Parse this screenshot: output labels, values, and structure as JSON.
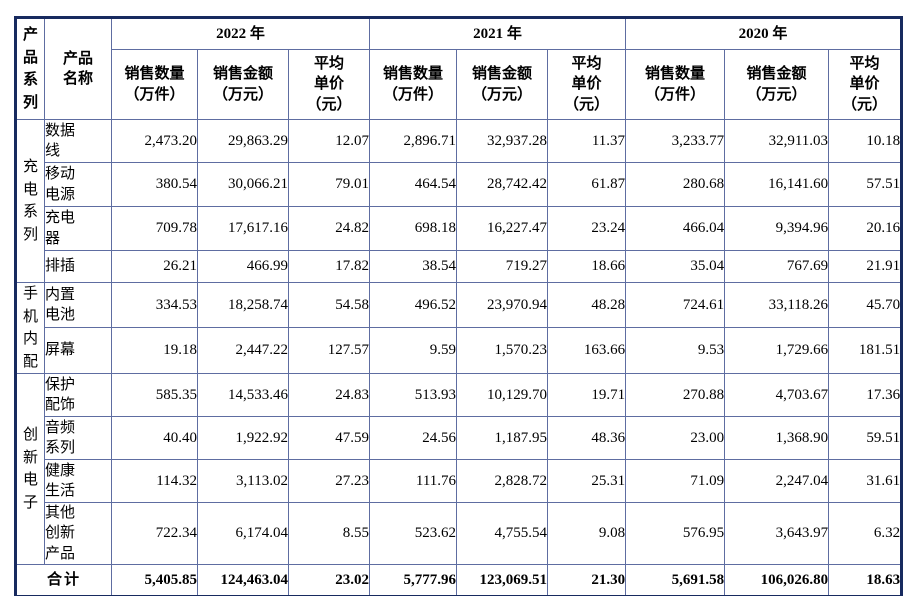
{
  "table": {
    "header": {
      "series": "产品系列",
      "product": "产品\n名称",
      "years": [
        "2022 年",
        "2021 年",
        "2020 年"
      ],
      "metrics": [
        "销售数量\n（万件）",
        "销售金额\n（万元）",
        "平均\n单价\n（元）"
      ]
    },
    "groups": [
      {
        "name": "充电系列",
        "rows": [
          {
            "name": "数据\n线",
            "values": [
              "2,473.20",
              "29,863.29",
              "12.07",
              "2,896.71",
              "32,937.28",
              "11.37",
              "3,233.77",
              "32,911.03",
              "10.18"
            ]
          },
          {
            "name": "移动\n电源",
            "values": [
              "380.54",
              "30,066.21",
              "79.01",
              "464.54",
              "28,742.42",
              "61.87",
              "280.68",
              "16,141.60",
              "57.51"
            ]
          },
          {
            "name": "充电\n器",
            "values": [
              "709.78",
              "17,617.16",
              "24.82",
              "698.18",
              "16,227.47",
              "23.24",
              "466.04",
              "9,394.96",
              "20.16"
            ]
          },
          {
            "name": "排插",
            "values": [
              "26.21",
              "466.99",
              "17.82",
              "38.54",
              "719.27",
              "18.66",
              "35.04",
              "767.69",
              "21.91"
            ]
          }
        ]
      },
      {
        "name": "手机内配",
        "rows": [
          {
            "name": "内置\n电池",
            "values": [
              "334.53",
              "18,258.74",
              "54.58",
              "496.52",
              "23,970.94",
              "48.28",
              "724.61",
              "33,118.26",
              "45.70"
            ]
          },
          {
            "name": "屏幕",
            "values": [
              "19.18",
              "2,447.22",
              "127.57",
              "9.59",
              "1,570.23",
              "163.66",
              "9.53",
              "1,729.66",
              "181.51"
            ]
          }
        ]
      },
      {
        "name": "创新电子",
        "rows": [
          {
            "name": "保护\n配饰",
            "values": [
              "585.35",
              "14,533.46",
              "24.83",
              "513.93",
              "10,129.70",
              "19.71",
              "270.88",
              "4,703.67",
              "17.36"
            ]
          },
          {
            "name": "音频\n系列",
            "values": [
              "40.40",
              "1,922.92",
              "47.59",
              "24.56",
              "1,187.95",
              "48.36",
              "23.00",
              "1,368.90",
              "59.51"
            ]
          },
          {
            "name": "健康\n生活",
            "values": [
              "114.32",
              "3,113.02",
              "27.23",
              "111.76",
              "2,828.72",
              "25.31",
              "71.09",
              "2,247.04",
              "31.61"
            ]
          },
          {
            "name": "其他\n创新\n产品",
            "values": [
              "722.34",
              "6,174.04",
              "8.55",
              "523.62",
              "4,755.54",
              "9.08",
              "576.95",
              "3,643.97",
              "6.32"
            ]
          }
        ]
      }
    ],
    "total": {
      "label": "合计",
      "values": [
        "5,405.85",
        "124,463.04",
        "23.02",
        "5,777.96",
        "123,069.51",
        "21.30",
        "5,691.58",
        "106,026.80",
        "18.63"
      ]
    },
    "colors": {
      "outer_border": "#172a5f",
      "inner_border": "#5e6da1"
    }
  }
}
